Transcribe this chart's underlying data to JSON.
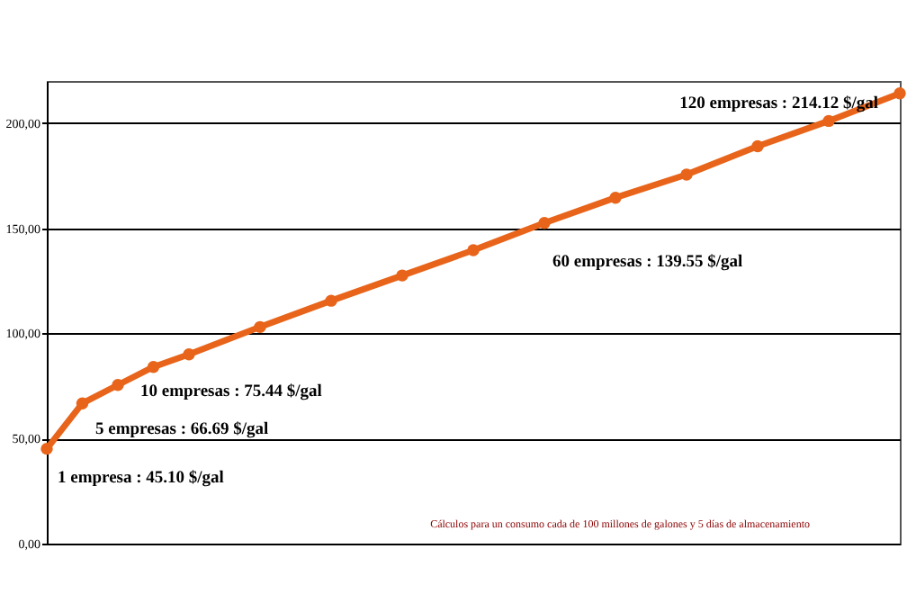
{
  "chart_data": {
    "type": "line",
    "categories": [
      null,
      null,
      null,
      null,
      null,
      null,
      null,
      null,
      null,
      null,
      null,
      null,
      null,
      null,
      null,
      null,
      null,
      null,
      null,
      null,
      null,
      null,
      null,
      null,
      null
    ],
    "series": [
      {
        "color": "#e8641a",
        "values": [
          45.1,
          66.69,
          75.44,
          84,
          90,
          null,
          103,
          null,
          115.5,
          null,
          127.5,
          null,
          139.55,
          null,
          152.5,
          null,
          164.5,
          null,
          175.5,
          null,
          189,
          null,
          201,
          null,
          214.12
        ]
      }
    ],
    "ylim": [
      0,
      220
    ],
    "yticks": [
      {
        "value": 0,
        "label": "0,00"
      },
      {
        "value": 50,
        "label": "50,00"
      },
      {
        "value": 100,
        "label": "100,00"
      },
      {
        "value": 150,
        "label": "150,00"
      },
      {
        "value": 200,
        "label": "200,00"
      }
    ],
    "tick_labels": "y",
    "grid": "y",
    "marker": "circle",
    "annotations": [
      "1 empresa : 45.10 $/gal",
      "5 empresas : 66.69 $/gal",
      "10 empresas : 75.44 $/gal",
      "60 empresas : 139.55 $/gal",
      "120 empresas : 214.12 $/gal",
      "Cálculos para un consumo cada de 100 millones de galones y 5 días de almacenamiento"
    ]
  }
}
